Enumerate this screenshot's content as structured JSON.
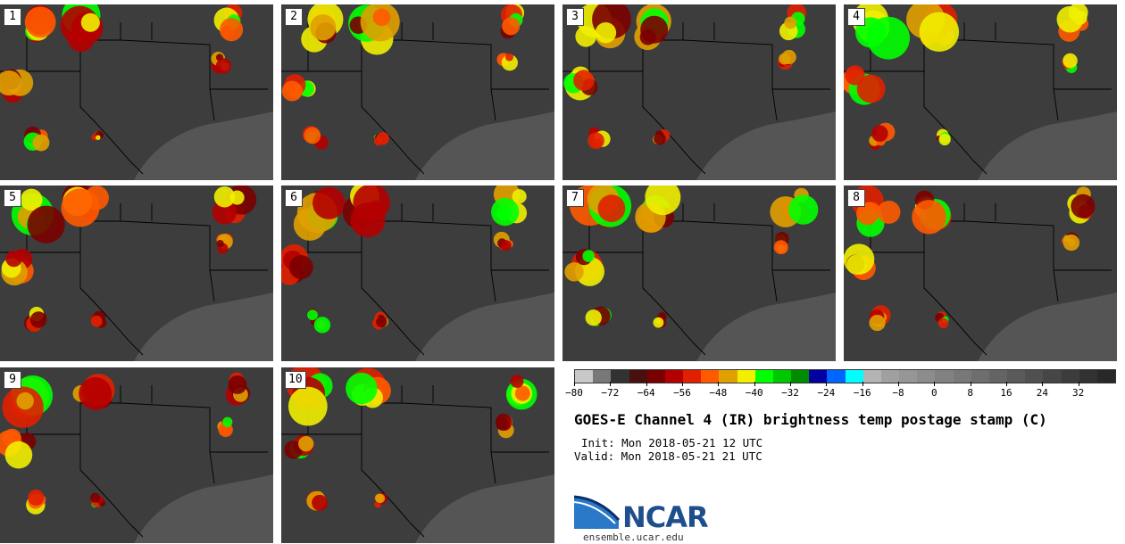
{
  "panels": [
    {
      "label": "1"
    },
    {
      "label": "2"
    },
    {
      "label": "3"
    },
    {
      "label": "4"
    },
    {
      "label": "5"
    },
    {
      "label": "6"
    },
    {
      "label": "7"
    },
    {
      "label": "8"
    },
    {
      "label": "9"
    },
    {
      "label": "10"
    }
  ],
  "colorbar": {
    "colors": [
      "#c8c8c8",
      "#787878",
      "#323232",
      "#4a1010",
      "#7a0000",
      "#b40000",
      "#e02000",
      "#ff5a00",
      "#e0a000",
      "#f0f000",
      "#00ff00",
      "#00c800",
      "#008c00",
      "#0000a0",
      "#0064ff",
      "#00ffff",
      "#b4b4b4",
      "#a0a0a0",
      "#969696",
      "#8c8c8c",
      "#828282",
      "#787878",
      "#6e6e6e",
      "#646464",
      "#5a5a5a",
      "#505050",
      "#464646",
      "#3c3c3c",
      "#323232",
      "#282828"
    ],
    "min": -80,
    "max": 40,
    "tick_labels": [
      "-80",
      "-72",
      "-64",
      "-56",
      "-48",
      "-40",
      "-32",
      "-24",
      "-16",
      "-8",
      "0",
      "8",
      "16",
      "24",
      "32"
    ],
    "tick_values": [
      -80,
      -72,
      -64,
      -56,
      -48,
      -40,
      -32,
      -24,
      -16,
      -8,
      0,
      8,
      16,
      24,
      32
    ]
  },
  "title": "GOES-E Channel 4 (IR) brightness temp postage stamp (C)",
  "init": "Init: Mon 2018-05-21 12 UTC",
  "valid": "Valid: Mon 2018-05-21 21 UTC",
  "logo": {
    "text": "NCAR",
    "color": "#1f4e8c"
  },
  "site": "ensemble.ucar.edu"
}
